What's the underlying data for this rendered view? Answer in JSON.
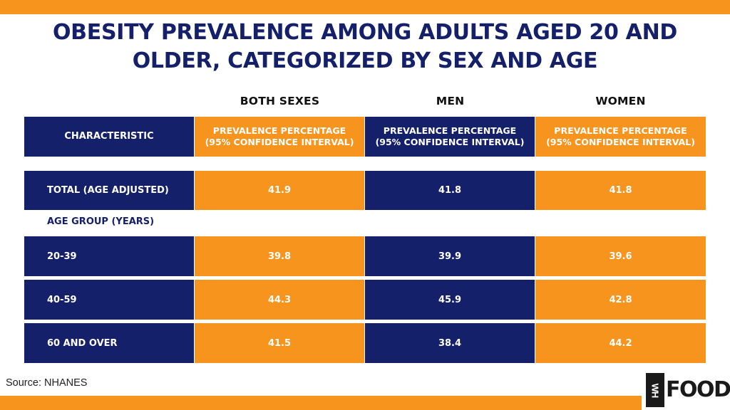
{
  "title": {
    "line1": "OBESITY PREVALENCE AMONG ADULTS AGED 20 AND",
    "line2": "OLDER, CATEGORIZED BY SEX AND AGE"
  },
  "columns": [
    "BOTH SEXES",
    "MEN",
    "WOMEN"
  ],
  "header": {
    "characteristic": "CHARACTERISTIC",
    "prevalence_line1": "PREVALENCE PERCENTAGE",
    "prevalence_line2": "(95% CONFIDENCE INTERVAL)"
  },
  "total_row": {
    "label": "TOTAL (AGE ADJUSTED)",
    "values": [
      "41.9",
      "41.8",
      "41.8"
    ]
  },
  "age_group_label": "AGE GROUP (YEARS)",
  "age_rows": [
    {
      "label": "20-39",
      "values": [
        "39.8",
        "39.9",
        "39.6"
      ]
    },
    {
      "label": "40-59",
      "values": [
        "44.3",
        "45.9",
        "42.8"
      ]
    },
    {
      "label": "60 AND OVER",
      "values": [
        "41.5",
        "38.4",
        "44.2"
      ]
    }
  ],
  "source": "Source: NHANES",
  "logo": {
    "mark": "WH",
    "text": "FOODS"
  },
  "colors": {
    "navy": "#15206b",
    "orange": "#f7941d"
  }
}
